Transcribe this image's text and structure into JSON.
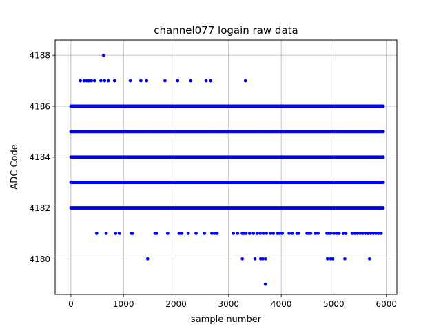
{
  "chart_data": {
    "type": "scatter",
    "title": "channel077 logain raw data",
    "xlabel": "sample number",
    "ylabel": "ADC Code",
    "xlim": [
      -300,
      6200
    ],
    "ylim": [
      4178.6,
      4188.6
    ],
    "xticks": [
      0,
      1000,
      2000,
      3000,
      4000,
      5000,
      6000
    ],
    "xtick_labels": [
      "0",
      "1000",
      "2000",
      "3000",
      "4000",
      "5000",
      "6000"
    ],
    "yticks": [
      4180,
      4182,
      4184,
      4186,
      4188
    ],
    "ytick_labels": [
      "4180",
      "4182",
      "4184",
      "4186",
      "4188"
    ],
    "grid": true,
    "marker_color": "#0000ff",
    "sample_range": [
      0,
      5940
    ],
    "dense_levels": [
      4182,
      4183,
      4184,
      4185,
      4186
    ],
    "sparse_points": [
      {
        "y": 4188,
        "x": [
          620
        ]
      },
      {
        "y": 4187,
        "x": [
          180,
          250,
          300,
          340,
          390,
          450,
          570,
          640,
          710,
          830,
          1130,
          1330,
          1440,
          1790,
          2030,
          2280,
          2570,
          2660,
          3320
        ]
      },
      {
        "y": 4181,
        "x": [
          490,
          670,
          850,
          920,
          1150,
          1170,
          1600,
          1630,
          1840,
          2060,
          2110,
          2230,
          2380,
          2540,
          2680,
          2730,
          2780,
          3090,
          3170,
          3260,
          3290,
          3330,
          3400,
          3470,
          3540,
          3600,
          3660,
          3720,
          3800,
          3850,
          3930,
          3970,
          4020,
          4150,
          4210,
          4300,
          4330,
          4490,
          4520,
          4560,
          4650,
          4700,
          4870,
          4900,
          4940,
          5000,
          5050,
          5100,
          5180,
          5230,
          5350,
          5400,
          5450,
          5500,
          5550,
          5600,
          5650,
          5700,
          5750,
          5800,
          5850,
          5900
        ]
      },
      {
        "y": 4180,
        "x": [
          1460,
          3260,
          3500,
          3610,
          3650,
          3700,
          4880,
          4940,
          4980,
          5210,
          5680
        ]
      },
      {
        "y": 4179,
        "x": [
          3700
        ]
      }
    ]
  }
}
